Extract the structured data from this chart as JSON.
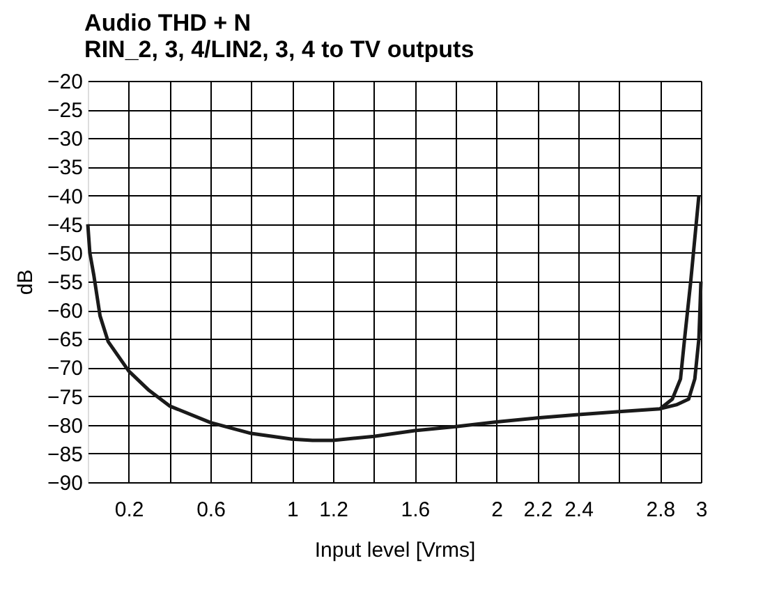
{
  "chart_data": {
    "type": "line",
    "title": "Audio THD + N\nRIN_2, 3, 4/LIN2, 3, 4 to TV outputs",
    "xlabel": "Input level [Vrms]",
    "ylabel": "dB",
    "xlim": [
      0,
      3
    ],
    "ylim": [
      -90,
      -20
    ],
    "xticks": [
      0.2,
      {
        "value": 0.4,
        "label": null
      },
      0.6,
      {
        "value": 0.8,
        "label": null
      },
      1,
      1.2,
      {
        "value": 1.4,
        "label": null
      },
      1.6,
      {
        "value": 1.8,
        "label": null
      },
      2,
      2.2,
      2.4,
      {
        "value": 2.6,
        "label": null
      },
      2.8,
      3
    ],
    "yticks": [
      -90,
      -85,
      -80,
      -75,
      -70,
      -65,
      -60,
      -55,
      -50,
      -45,
      -40,
      -35,
      -30,
      -25,
      -20
    ],
    "grid": true,
    "legend": false,
    "marker": "none",
    "line_style": "solid",
    "series": [
      {
        "color": "#1a1a1a",
        "x": [
          0.0,
          0.01,
          0.03,
          0.06,
          0.1,
          0.2,
          0.3,
          0.4,
          0.6,
          0.8,
          1.0,
          1.1,
          1.2,
          1.4,
          1.6,
          1.8,
          2.0,
          2.2,
          2.4,
          2.6,
          2.8,
          2.86,
          2.9,
          2.92,
          2.95,
          2.99
        ],
        "values": [
          -45,
          -50,
          -54,
          -61,
          -65.5,
          -70.6,
          -74,
          -76.7,
          -79.6,
          -81.5,
          -82.5,
          -82.7,
          -82.7,
          -82,
          -81,
          -80.3,
          -79.5,
          -78.8,
          -78.2,
          -77.7,
          -77.2,
          -75.5,
          -72,
          -65,
          -55,
          -40
        ]
      },
      {
        "color": "#1a1a1a",
        "x": [
          2.8,
          2.88,
          2.94,
          2.97,
          2.99,
          3.0
        ],
        "values": [
          -77.2,
          -76.5,
          -75.5,
          -72,
          -65,
          -55
        ]
      }
    ]
  }
}
